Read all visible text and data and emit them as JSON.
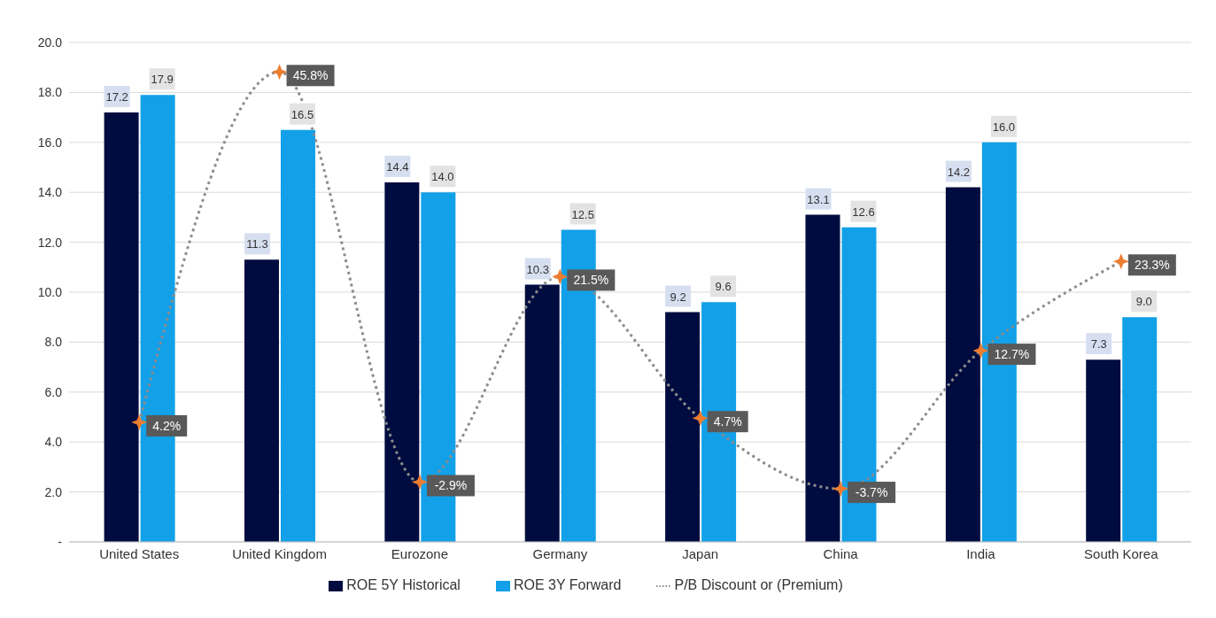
{
  "chart_data": {
    "type": "bar",
    "categories": [
      "United States",
      "United Kingdom",
      "Eurozone",
      "Germany",
      "Japan",
      "China",
      "India",
      "South Korea"
    ],
    "series": [
      {
        "name": "ROE 5Y Historical",
        "color": "#000c3f",
        "values": [
          17.2,
          11.3,
          14.4,
          10.3,
          9.2,
          13.1,
          14.2,
          7.3
        ],
        "value_labels": [
          "17.2",
          "11.3",
          "14.4",
          "10.3",
          "9.2",
          "13.1",
          "14.2",
          "7.3"
        ]
      },
      {
        "name": "ROE 3Y Forward",
        "color": "#12a0e8",
        "values": [
          17.9,
          16.5,
          14.0,
          12.5,
          9.6,
          12.6,
          16.0,
          9.0
        ],
        "value_labels": [
          "17.9",
          "16.5",
          "14.0",
          "12.5",
          "9.6",
          "12.6",
          "16.0",
          "9.0"
        ]
      },
      {
        "name": "P/B Discount or (Premium)",
        "type": "line",
        "axis": "y2",
        "color": "#ed7d31",
        "line_style": "dotted",
        "marker": "star",
        "values": [
          4.2,
          45.8,
          -2.9,
          21.5,
          4.7,
          -3.7,
          12.7,
          23.3
        ],
        "value_labels": [
          "4.2%",
          "45.8%",
          "-2.9%",
          "21.5%",
          "4.7%",
          "-3.7%",
          "12.7%",
          "23.3%"
        ]
      }
    ],
    "ylim": [
      0,
      20
    ],
    "yticks": [
      {
        "value": 0,
        "label": "-"
      },
      {
        "value": 2,
        "label": "2.0"
      },
      {
        "value": 4,
        "label": "4.0"
      },
      {
        "value": 6,
        "label": "6.0"
      },
      {
        "value": 8,
        "label": "8.0"
      },
      {
        "value": 10,
        "label": "10.0"
      },
      {
        "value": 12,
        "label": "12.0"
      },
      {
        "value": 14,
        "label": "14.0"
      },
      {
        "value": 16,
        "label": "16.0"
      },
      {
        "value": 18,
        "label": "18.0"
      },
      {
        "value": 20,
        "label": "20.0"
      }
    ],
    "y2lim": [
      -10,
      49.3
    ],
    "grid": "y",
    "legend": "bottom"
  }
}
